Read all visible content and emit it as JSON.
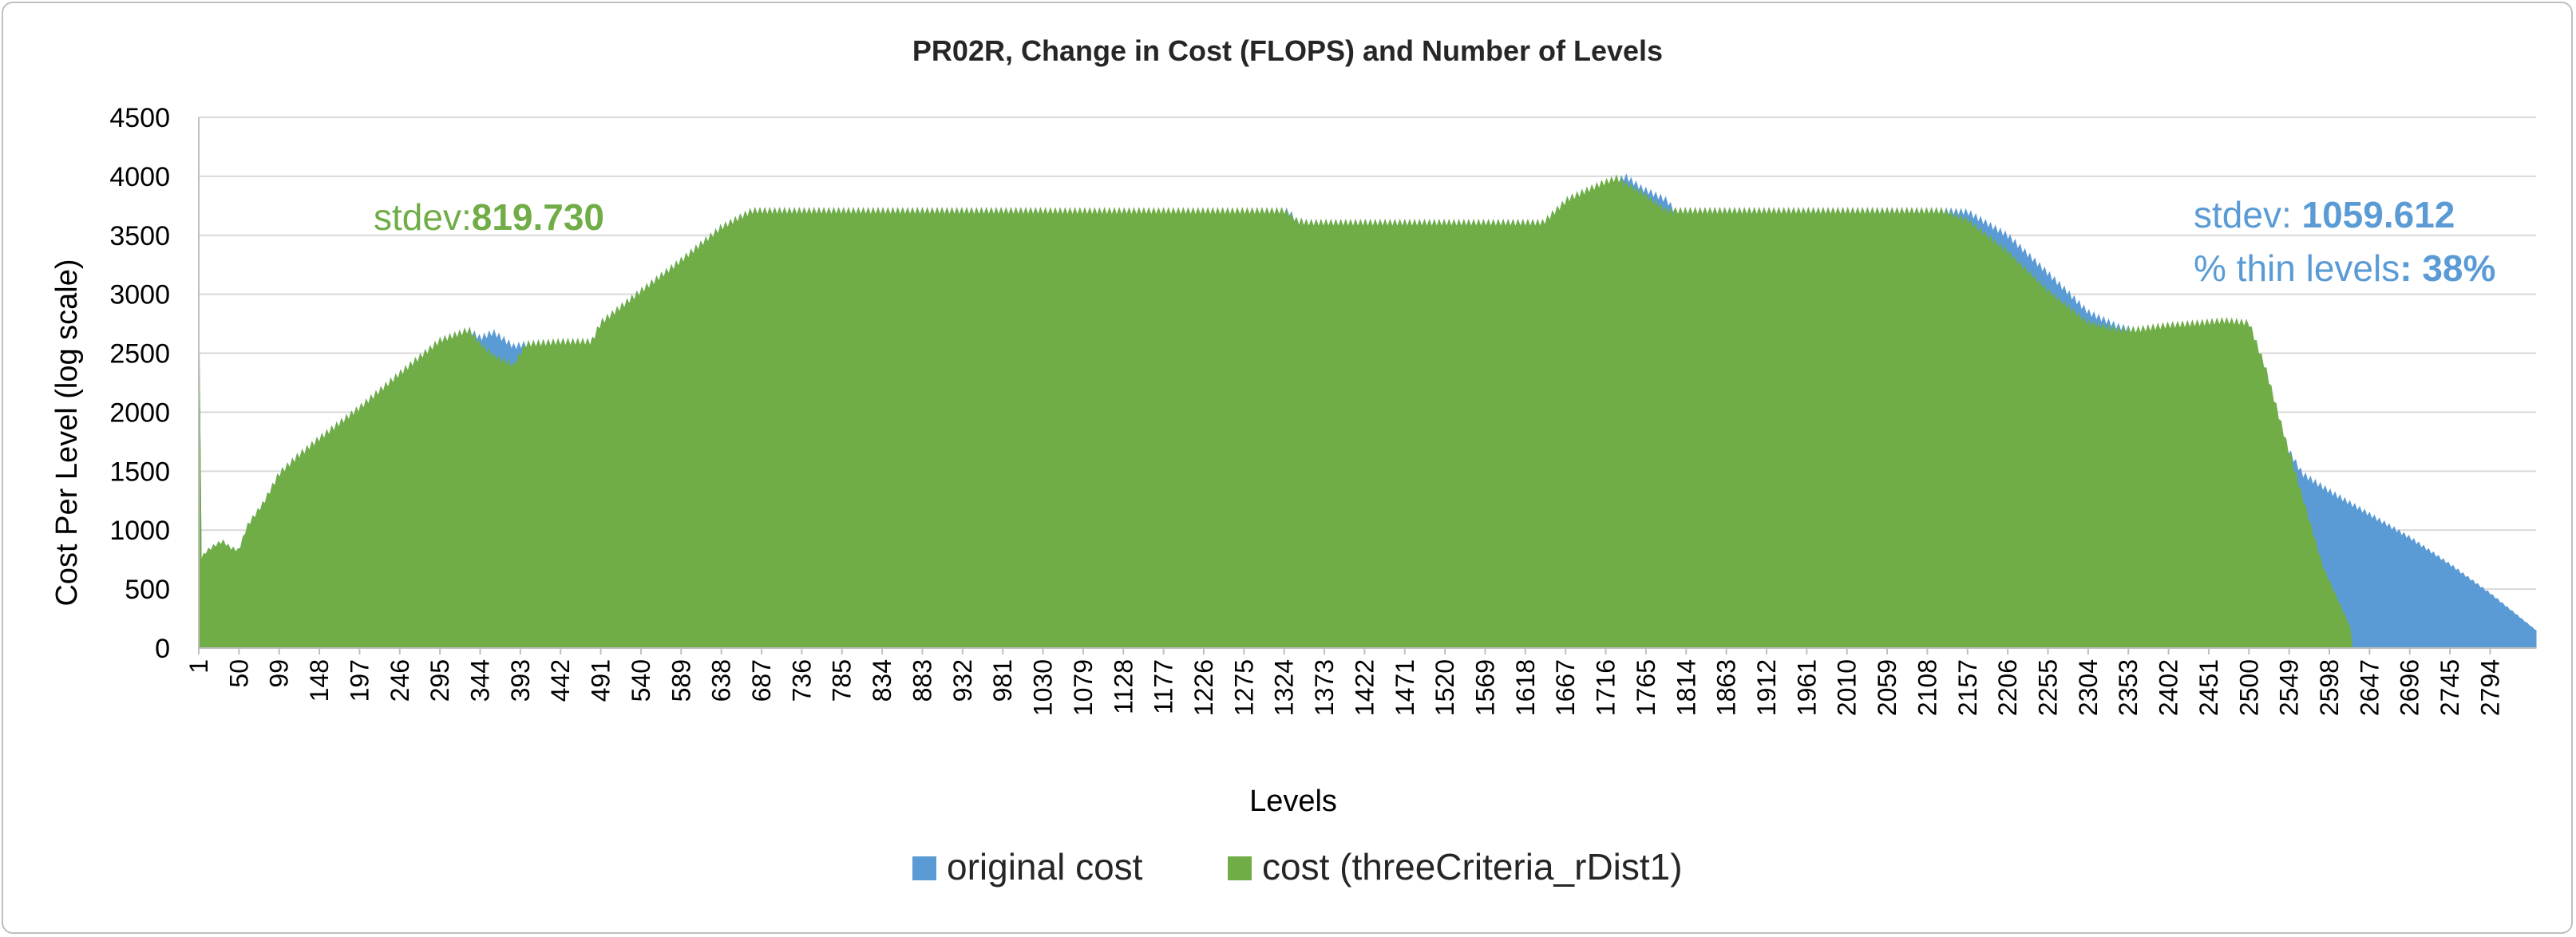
{
  "chart_data": {
    "type": "area",
    "title": "PR02R, Change in Cost (FLOPS) and Number of Levels",
    "xlabel": "Levels",
    "ylabel": "Cost Per Level (log scale)",
    "ylim": [
      0,
      4500
    ],
    "yticks": [
      0,
      500,
      1000,
      1500,
      2000,
      2500,
      3000,
      3500,
      4000,
      4500
    ],
    "x_range": [
      1,
      2850
    ],
    "xticks": [
      1,
      50,
      99,
      148,
      197,
      246,
      295,
      344,
      393,
      442,
      491,
      540,
      589,
      638,
      687,
      736,
      785,
      834,
      883,
      932,
      981,
      1030,
      1079,
      1128,
      1177,
      1226,
      1275,
      1324,
      1373,
      1422,
      1471,
      1520,
      1569,
      1618,
      1667,
      1716,
      1765,
      1814,
      1863,
      1912,
      1961,
      2010,
      2059,
      2108,
      2157,
      2206,
      2255,
      2304,
      2353,
      2402,
      2451,
      2500,
      2549,
      2598,
      2647,
      2696,
      2745,
      2794
    ],
    "grid": true,
    "legend_position": "bottom",
    "series": [
      {
        "name": "original cost",
        "color": "#5b9bd5",
        "x": [
          1,
          3,
          10,
          20,
          30,
          40,
          50,
          60,
          80,
          99,
          120,
          148,
          197,
          246,
          295,
          330,
          344,
          360,
          385,
          400,
          442,
          480,
          491,
          540,
          589,
          638,
          675,
          1030,
          1040,
          1324,
          1330,
          1340,
          1345,
          1350,
          1640,
          1670,
          1710,
          1730,
          1740,
          1760,
          1790,
          1800,
          2125,
          2157,
          2206,
          2255,
          2304,
          2340,
          2360,
          2400,
          2440,
          2470,
          2500,
          2520,
          2540,
          2565,
          2598,
          2647,
          2696,
          2745,
          2794,
          2850
        ],
        "values": [
          2880,
          760,
          830,
          880,
          920,
          860,
          840,
          1050,
          1250,
          1500,
          1640,
          1800,
          2060,
          2350,
          2630,
          2720,
          2650,
          2700,
          2580,
          2600,
          2620,
          2620,
          2780,
          3050,
          3310,
          3590,
          3730,
          3730,
          3700,
          3730,
          3720,
          3640,
          3640,
          3630,
          3630,
          3830,
          3940,
          3980,
          4020,
          3920,
          3820,
          3730,
          3730,
          3720,
          3520,
          3200,
          2870,
          2750,
          2720,
          2720,
          2720,
          2720,
          2720,
          2300,
          1800,
          1500,
          1350,
          1150,
          950,
          720,
          470,
          150
        ]
      },
      {
        "name": "cost (threeCriteria_rDist1)",
        "color": "#70ad47",
        "x": [
          1,
          3,
          10,
          20,
          30,
          40,
          50,
          60,
          80,
          99,
          120,
          148,
          197,
          246,
          295,
          330,
          344,
          360,
          385,
          400,
          442,
          480,
          491,
          540,
          589,
          638,
          675,
          1030,
          1040,
          1324,
          1330,
          1340,
          1345,
          1350,
          1640,
          1670,
          1710,
          1730,
          1740,
          1760,
          1790,
          1800,
          2125,
          2157,
          2206,
          2255,
          2304,
          2340,
          2360,
          2400,
          2440,
          2470,
          2500,
          2520,
          2540,
          2565,
          2590,
          2625,
          2626
        ],
        "values": [
          2880,
          760,
          830,
          880,
          920,
          860,
          840,
          1050,
          1250,
          1500,
          1640,
          1800,
          2060,
          2350,
          2630,
          2720,
          2600,
          2500,
          2420,
          2600,
          2620,
          2620,
          2780,
          3050,
          3310,
          3590,
          3730,
          3730,
          3730,
          3730,
          3700,
          3640,
          3640,
          3630,
          3630,
          3830,
          3960,
          4010,
          3960,
          3880,
          3730,
          3730,
          3730,
          3650,
          3380,
          3050,
          2780,
          2720,
          2720,
          2760,
          2780,
          2800,
          2780,
          2400,
          1900,
          1300,
          700,
          150,
          0
        ]
      }
    ],
    "annotations": {
      "green_prefix": "stdev:",
      "green_value": "819.730",
      "blue_stdev_prefix": "stdev: ",
      "blue_stdev_value": "1059.612",
      "blue_thin_prefix": "% thin levels",
      "blue_thin_value": ": 38%"
    }
  }
}
